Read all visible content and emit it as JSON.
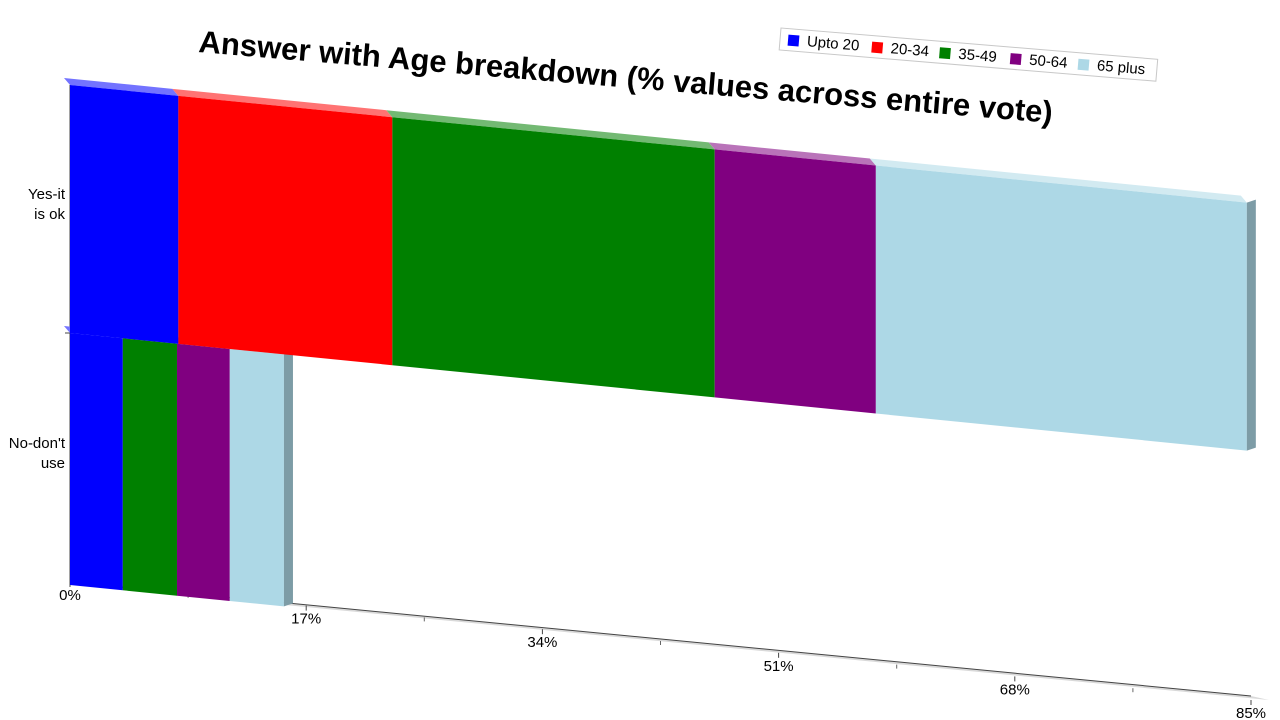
{
  "chart_data": {
    "type": "bar",
    "orientation": "horizontal",
    "stacked": true,
    "three_d": true,
    "title": "Answer with Age breakdown (% values across entire vote)",
    "categories": [
      "Yes-it is ok",
      "No-don't use"
    ],
    "category_lines": [
      [
        "Yes-it",
        "is ok"
      ],
      [
        "No-don't",
        "use"
      ]
    ],
    "series": [
      {
        "name": "Upto 20",
        "color": "#0000ff",
        "values": [
          7.8,
          3.8
        ]
      },
      {
        "name": "20-34",
        "color": "#ff0000",
        "values": [
          15.4,
          0
        ]
      },
      {
        "name": "35-49",
        "color": "#008000",
        "values": [
          23.2,
          3.9
        ]
      },
      {
        "name": "50-64",
        "color": "#800080",
        "values": [
          11.6,
          3.8
        ]
      },
      {
        "name": "65 plus",
        "color": "#add8e6",
        "values": [
          26.7,
          3.9
        ]
      }
    ],
    "xlim": [
      0,
      85
    ],
    "x_ticks": [
      "0%",
      "17%",
      "34%",
      "51%",
      "68%",
      "85%"
    ],
    "x_tick_values": [
      0,
      17,
      34,
      51,
      68,
      85
    ],
    "legend_position": "top-right",
    "grid": false
  }
}
